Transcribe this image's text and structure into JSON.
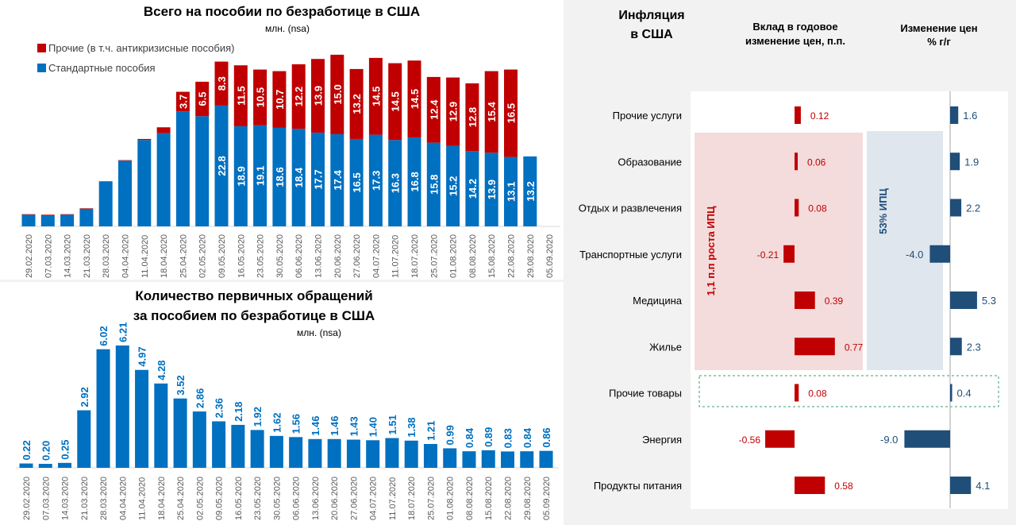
{
  "chart_data": [
    {
      "type": "bar",
      "stacked": true,
      "title": "Всего на пособии по безработице в США",
      "subtitle": "млн. (nsa)",
      "legend_placement": "top-left",
      "categories": [
        "29.02.2020",
        "07.03.2020",
        "14.03.2020",
        "21.03.2020",
        "28.03.2020",
        "04.04.2020",
        "11.04.2020",
        "18.04.2020",
        "25.04.2020",
        "02.05.2020",
        "09.05.2020",
        "16.05.2020",
        "23.05.2020",
        "30.05.2020",
        "06.06.2020",
        "13.06.2020",
        "20.06.2020",
        "27.06.2020",
        "04.07.2020",
        "11.07.2020",
        "18.07.2020",
        "25.07.2020",
        "01.08.2020",
        "08.08.2020",
        "15.08.2020",
        "22.08.2020",
        "29.08.2020",
        "05.09.2020"
      ],
      "series": [
        {
          "name": "Стандартные пособия",
          "color": "#0070c0",
          "values": [
            2.2,
            2.1,
            2.2,
            3.3,
            8.4,
            12.4,
            16.3,
            17.6,
            21.7,
            20.8,
            22.8,
            18.9,
            19.1,
            18.6,
            18.4,
            17.7,
            17.4,
            16.5,
            17.3,
            16.3,
            16.8,
            15.8,
            15.2,
            14.2,
            13.9,
            13.1,
            13.2,
            null
          ],
          "labeled_from": "09.05.2020"
        },
        {
          "name": "Прочие (в т.ч. антикризисные пособия)",
          "color": "#c00000",
          "values": [
            0.1,
            0.1,
            0.1,
            0.1,
            0.1,
            0.1,
            0.2,
            1.1,
            3.7,
            6.5,
            8.3,
            11.5,
            10.5,
            10.7,
            12.2,
            13.9,
            15.0,
            13.2,
            14.5,
            14.5,
            14.5,
            12.4,
            12.9,
            12.8,
            15.4,
            16.5,
            null,
            null
          ],
          "labeled_from": "25.04.2020"
        }
      ],
      "grid": false
    },
    {
      "type": "bar",
      "title_lines": [
        "Количество первичных обращений",
        "за пособием по безработице в США"
      ],
      "subtitle": "млн. (nsa)",
      "color": "#0070c0",
      "categories": [
        "29.02.2020",
        "07.03.2020",
        "14.03.2020",
        "21.03.2020",
        "28.03.2020",
        "04.04.2020",
        "11.04.2020",
        "18.04.2020",
        "25.04.2020",
        "02.05.2020",
        "09.05.2020",
        "16.05.2020",
        "23.05.2020",
        "30.05.2020",
        "06.06.2020",
        "13.06.2020",
        "20.06.2020",
        "27.06.2020",
        "04.07.2020",
        "11.07.2020",
        "18.07.2020",
        "25.07.2020",
        "01.08.2020",
        "08.08.2020",
        "15.08.2020",
        "22.08.2020",
        "29.08.2020",
        "05.09.2020"
      ],
      "values": [
        0.22,
        0.2,
        0.25,
        2.92,
        6.02,
        6.21,
        4.97,
        4.28,
        3.52,
        2.86,
        2.36,
        2.18,
        1.92,
        1.62,
        1.56,
        1.46,
        1.46,
        1.43,
        1.4,
        1.51,
        1.38,
        1.21,
        0.99,
        0.84,
        0.89,
        0.83,
        0.84,
        0.86
      ],
      "value_labels": [
        "0.22",
        "0.20",
        "0.25",
        "2.92",
        "6.02",
        "6.21",
        "4.97",
        "4.28",
        "3.52",
        "2.86",
        "2.36",
        "2.18",
        "1.92",
        "1.62",
        "1.56",
        "1.46",
        "1.46",
        "1.43",
        "1.40",
        "1.51",
        "1.38",
        "1.21",
        "0.99",
        "0.84",
        "0.89",
        "0.83",
        "0.84",
        "0.86"
      ],
      "grid": false
    },
    {
      "type": "bar",
      "orientation": "horizontal",
      "title_lines": [
        "Инфляция",
        "в США"
      ],
      "categories": [
        "Прочие услуги",
        "Образование",
        "Отдых и развлечения",
        "Транспортные услуги",
        "Медицина",
        "Жилье",
        "Прочие товары",
        "Энергия",
        "Продукты питания"
      ],
      "series": [
        {
          "name_lines": [
            "Вклад в годовое",
            "изменение цен, п.п."
          ],
          "color": "#c00000",
          "values": [
            0.12,
            0.06,
            0.08,
            -0.21,
            0.39,
            0.77,
            0.08,
            -0.56,
            0.58
          ],
          "value_labels": [
            "0.12",
            "0.06",
            "0.08",
            "-0.21",
            "0.39",
            "0.77",
            "0.08",
            "-0.56",
            "0.58"
          ]
        },
        {
          "name_lines": [
            "Изменение цен",
            "% г/г"
          ],
          "color": "#1f4e79",
          "values": [
            1.6,
            1.9,
            2.2,
            -4.0,
            5.3,
            2.3,
            0.4,
            -9.0,
            4.1
          ],
          "value_labels": [
            "1.6",
            "1.9",
            "2.2",
            "-4.0",
            "5.3",
            "2.3",
            "0.4",
            "-9.0",
            "4.1"
          ]
        }
      ],
      "annotations": [
        {
          "text": "1,1 п.п роста ИПЦ",
          "color": "#c00000",
          "fill": "#f4dcdc",
          "rows": [
            "Образование",
            "Жилье"
          ]
        },
        {
          "text": "53% ИПЦ",
          "color": "#1f4e79",
          "fill": "#dfe6ee",
          "rows": [
            "Образование",
            "Жилье"
          ]
        },
        {
          "style": "dashed",
          "color": "#3aa26a",
          "rows": [
            "Прочие товары"
          ]
        }
      ],
      "background": "#f2f2f2"
    }
  ]
}
